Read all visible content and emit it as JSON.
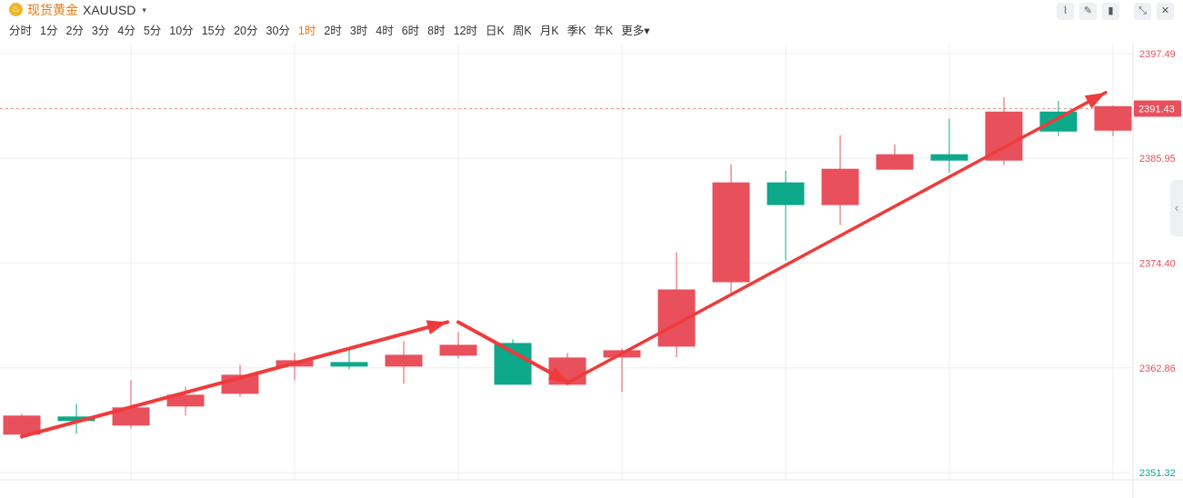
{
  "header": {
    "logo_glyph": "♨",
    "title": "现货黄金",
    "symbol": "XAUUSD",
    "caret": "▾",
    "periods": [
      "分时",
      "1分",
      "2分",
      "3分",
      "4分",
      "5分",
      "10分",
      "15分",
      "20分",
      "30分",
      "1时",
      "2时",
      "3时",
      "4时",
      "6时",
      "8时",
      "12时",
      "日K",
      "周K",
      "月K",
      "季K",
      "年K",
      "更多▾"
    ],
    "active_period": "1时",
    "tool_icons": [
      "line-tool-icon",
      "pen-tool-icon",
      "candlestick-tool-icon",
      "collapse-icon",
      "close-icon"
    ],
    "tool_glyphs": [
      "⌇",
      "✎",
      "▮",
      "⤡",
      "✕"
    ]
  },
  "side_handle_glyph": "‹",
  "colors": {
    "up": "#e8505b",
    "down": "#0ea88a",
    "current_price_bg": "#e8505b",
    "grid": "#eeeeee",
    "arrow": "#ef3b3b",
    "axis_up_text": "#e8505b",
    "axis_down_text": "#0ea88a"
  },
  "chart_data": {
    "type": "candlestick",
    "symbol": "XAUUSD",
    "interval": "1时",
    "y_ticks": [
      2397.49,
      2385.95,
      2374.4,
      2362.86,
      2351.32
    ],
    "ylim": [
      2351.32,
      2397.49
    ],
    "current_price": 2391.43,
    "grid": true,
    "candles": [
      {
        "open": 2355.5,
        "close": 2357.6,
        "high": 2357.8,
        "low": 2355.0
      },
      {
        "open": 2357.5,
        "close": 2357.0,
        "high": 2358.9,
        "low": 2355.6
      },
      {
        "open": 2356.5,
        "close": 2358.5,
        "high": 2361.5,
        "low": 2356.2
      },
      {
        "open": 2358.6,
        "close": 2359.9,
        "high": 2360.8,
        "low": 2357.6
      },
      {
        "open": 2360.0,
        "close": 2362.1,
        "high": 2363.2,
        "low": 2359.7
      },
      {
        "open": 2363.0,
        "close": 2363.7,
        "high": 2364.5,
        "low": 2361.5
      },
      {
        "open": 2363.5,
        "close": 2363.0,
        "high": 2365.0,
        "low": 2362.7
      },
      {
        "open": 2363.0,
        "close": 2364.3,
        "high": 2365.8,
        "low": 2361.1
      },
      {
        "open": 2364.2,
        "close": 2365.4,
        "high": 2366.8,
        "low": 2363.9
      },
      {
        "open": 2365.6,
        "close": 2361.0,
        "high": 2366.0,
        "low": 2361.0
      },
      {
        "open": 2361.0,
        "close": 2364.0,
        "high": 2364.5,
        "low": 2360.9
      },
      {
        "open": 2364.0,
        "close": 2364.8,
        "high": 2365.0,
        "low": 2360.2
      },
      {
        "open": 2365.2,
        "close": 2371.5,
        "high": 2375.6,
        "low": 2364.0
      },
      {
        "open": 2372.3,
        "close": 2383.3,
        "high": 2385.3,
        "low": 2370.8
      },
      {
        "open": 2383.3,
        "close": 2380.8,
        "high": 2384.6,
        "low": 2374.7
      },
      {
        "open": 2380.8,
        "close": 2384.8,
        "high": 2388.5,
        "low": 2378.6
      },
      {
        "open": 2384.7,
        "close": 2386.4,
        "high": 2387.5,
        "low": 2384.7
      },
      {
        "open": 2386.4,
        "close": 2385.7,
        "high": 2390.3,
        "low": 2384.4
      },
      {
        "open": 2385.7,
        "close": 2391.1,
        "high": 2392.7,
        "low": 2385.2
      },
      {
        "open": 2391.1,
        "close": 2388.9,
        "high": 2392.3,
        "low": 2388.4
      },
      {
        "open": 2389.0,
        "close": 2391.7,
        "high": 2391.8,
        "low": 2388.4
      }
    ],
    "annotations": [
      {
        "type": "arrow",
        "from_candle": 0,
        "from_value": 2355.3,
        "to_candle": 8,
        "to_value": 2367.9
      },
      {
        "type": "arrow",
        "from_candle": 8,
        "from_value": 2367.9,
        "to_candle": 10,
        "to_value": 2361.2
      },
      {
        "type": "arrow",
        "from_candle": 10,
        "from_value": 2361.2,
        "to_candle": 20,
        "to_value": 2393.2
      }
    ]
  }
}
